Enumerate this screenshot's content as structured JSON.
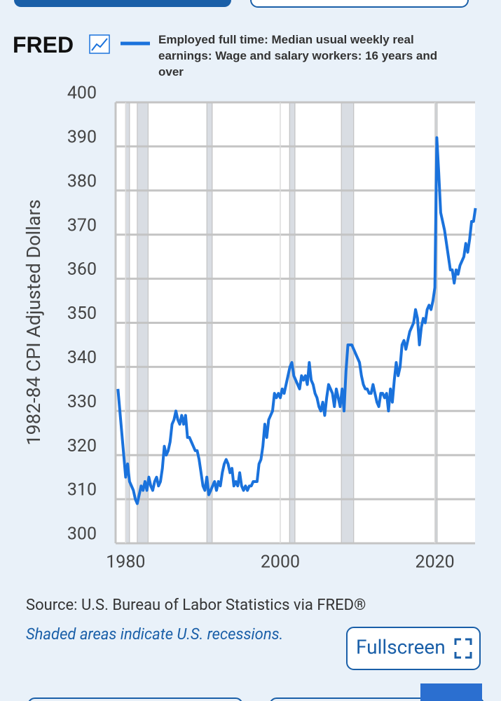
{
  "chart_data": {
    "type": "line",
    "logo": "FRED",
    "ylabel": "1982-84 CPI Adjusted Dollars",
    "source": "Source: U.S. Bureau of Labor Statistics via FRED®",
    "note": "Shaded areas indicate U.S. recessions.",
    "button": "Fullscreen",
    "xlim": [
      1978.7,
      2025.2
    ],
    "xticks": [
      1980,
      2000,
      2020
    ],
    "ylim": [
      300,
      400
    ],
    "yticks": [
      300,
      310,
      320,
      330,
      340,
      350,
      360,
      370,
      380,
      390,
      400
    ],
    "grid": true,
    "recessions": [
      [
        1980.0,
        1980.5
      ],
      [
        1981.5,
        1982.9
      ],
      [
        1990.5,
        1991.2
      ],
      [
        2001.2,
        2001.9
      ],
      [
        2007.9,
        2009.5
      ],
      [
        2020.1,
        2020.3
      ]
    ],
    "x": [
      1979,
      1979.25,
      1979.5,
      1979.75,
      1980,
      1980.25,
      1980.5,
      1980.75,
      1981,
      1981.25,
      1981.5,
      1981.75,
      1982,
      1982.25,
      1982.5,
      1982.75,
      1983,
      1983.25,
      1983.5,
      1983.75,
      1984,
      1984.25,
      1984.5,
      1984.75,
      1985,
      1985.25,
      1985.5,
      1985.75,
      1986,
      1986.25,
      1986.5,
      1986.75,
      1987,
      1987.25,
      1987.5,
      1987.75,
      1988,
      1988.25,
      1988.5,
      1988.75,
      1989,
      1989.25,
      1989.5,
      1989.75,
      1990,
      1990.25,
      1990.5,
      1990.75,
      1991,
      1991.25,
      1991.5,
      1991.75,
      1992,
      1992.25,
      1992.5,
      1992.75,
      1993,
      1993.25,
      1993.5,
      1993.75,
      1994,
      1994.25,
      1994.5,
      1994.75,
      1995,
      1995.25,
      1995.5,
      1995.75,
      1996,
      1996.25,
      1996.5,
      1996.75,
      1997,
      1997.25,
      1997.5,
      1997.75,
      1998,
      1998.25,
      1998.5,
      1998.75,
      1999,
      1999.25,
      1999.5,
      1999.75,
      2000,
      2000.25,
      2000.5,
      2000.75,
      2001,
      2001.25,
      2001.5,
      2001.75,
      2002,
      2002.25,
      2002.5,
      2002.75,
      2003,
      2003.25,
      2003.5,
      2003.75,
      2004,
      2004.25,
      2004.5,
      2004.75,
      2005,
      2005.25,
      2005.5,
      2005.75,
      2006,
      2006.25,
      2006.5,
      2006.75,
      2007,
      2007.25,
      2007.5,
      2007.75,
      2008,
      2008.25,
      2008.5,
      2008.75,
      2009,
      2009.25,
      2009.5,
      2009.75,
      2010,
      2010.25,
      2010.5,
      2010.75,
      2011,
      2011.25,
      2011.5,
      2011.75,
      2012,
      2012.25,
      2012.5,
      2012.75,
      2013,
      2013.25,
      2013.5,
      2013.75,
      2014,
      2014.25,
      2014.5,
      2014.75,
      2015,
      2015.25,
      2015.5,
      2015.75,
      2016,
      2016.25,
      2016.5,
      2016.75,
      2017,
      2017.25,
      2017.5,
      2017.75,
      2018,
      2018.25,
      2018.5,
      2018.75,
      2019,
      2019.25,
      2019.5,
      2019.75,
      2020,
      2020.25,
      2020.5,
      2020.75,
      2021,
      2021.25,
      2021.5,
      2021.75,
      2022,
      2022.25,
      2022.5,
      2022.75,
      2023,
      2023.25,
      2023.5,
      2023.75,
      2024,
      2024.25,
      2024.5,
      2024.75,
      2025,
      2025.25
    ],
    "series": [
      {
        "name": "Employed full time: Median usual weekly real earnings: Wage and salary workers: 16 years and over",
        "color": "#1a72dc",
        "values": [
          335,
          330,
          325,
          320,
          315,
          318,
          314,
          313,
          312,
          310,
          309,
          311,
          313,
          312,
          314,
          312,
          315,
          313,
          312,
          314,
          315,
          313,
          314,
          317,
          322,
          320,
          321,
          323,
          327,
          328,
          330,
          328,
          327,
          329,
          327,
          329,
          324,
          324,
          323,
          322,
          321,
          321,
          319,
          316,
          313,
          312,
          315,
          311,
          312,
          313,
          314,
          312,
          314,
          313,
          316,
          318,
          319,
          318,
          316,
          317,
          313,
          314,
          313,
          316,
          313,
          312,
          313,
          312,
          313,
          313,
          314,
          314,
          314,
          318,
          319,
          322,
          327,
          324,
          328,
          329,
          330,
          334,
          333,
          334,
          333,
          335,
          334,
          336,
          338,
          340,
          341,
          338,
          337,
          336,
          335,
          338,
          337,
          338,
          336,
          341,
          337,
          336,
          334,
          333,
          331,
          330,
          332,
          329,
          333,
          336,
          335,
          334,
          331,
          335,
          333,
          331,
          335,
          330,
          339,
          345,
          345,
          345,
          344,
          343,
          342,
          341,
          338,
          336,
          335,
          335,
          334,
          334,
          336,
          334,
          332,
          331,
          334,
          334,
          333,
          334,
          330,
          335,
          332,
          337,
          341,
          338,
          340,
          345,
          346,
          344,
          346,
          348,
          349,
          350,
          353,
          351,
          345,
          349,
          351,
          350,
          353,
          354,
          353,
          355,
          358,
          392,
          384,
          375,
          373,
          371,
          368,
          365,
          362,
          362,
          359,
          362,
          361,
          363,
          364,
          365,
          368,
          366,
          369,
          373,
          373,
          376
        ]
      }
    ]
  }
}
